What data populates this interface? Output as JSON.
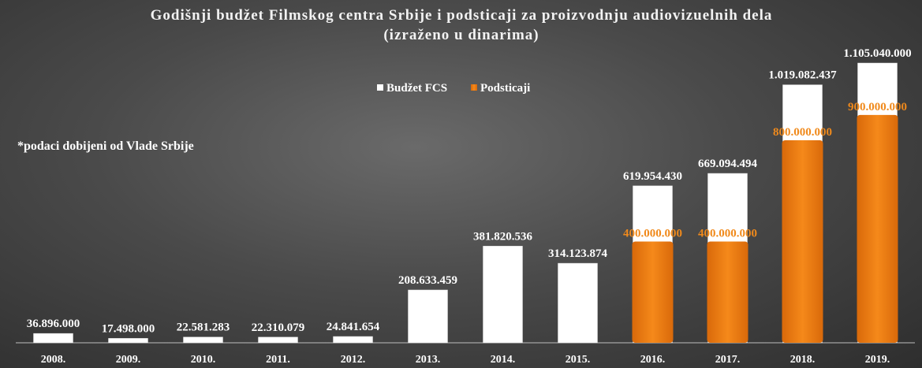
{
  "chart_data": {
    "type": "bar",
    "title": "Godišnji budžet Filmskog centra Srbije i podsticaji za proizvodnju audiovizuelnih dela",
    "subtitle": "(izraženo u dinarima)",
    "note": "*podaci dobijeni od Vlade Srbije",
    "legend_position": "top-center",
    "grid": false,
    "ylim": [
      0,
      1105040000
    ],
    "categories": [
      "2008.",
      "2009.",
      "2010.",
      "2011.",
      "2012.",
      "2013.",
      "2014.",
      "2015.",
      "2016.",
      "2017.",
      "2018.",
      "2019."
    ],
    "series": [
      {
        "name": "Budžet FCS",
        "color": "#ffffff",
        "values": [
          36896000,
          17498000,
          22581283,
          22310079,
          24841654,
          208633459,
          381820536,
          314123874,
          619954430,
          669094494,
          1019082437,
          1105040000
        ],
        "labels": [
          "36.896.000",
          "17.498.000",
          "22.581.283",
          "22.310.079",
          "24.841.654",
          "208.633.459",
          "381.820.536",
          "314.123.874",
          "619.954.430",
          "669.094.494",
          "1.019.082.437",
          "1.105.040.000"
        ]
      },
      {
        "name": "Podsticaji",
        "color": "#f08a1c",
        "values": [
          null,
          null,
          null,
          null,
          null,
          null,
          null,
          null,
          400000000,
          400000000,
          800000000,
          900000000
        ],
        "labels": [
          "",
          "",
          "",
          "",
          "",
          "",
          "",
          "",
          "400.000.000",
          "400.000.000",
          "800.000.000",
          "900.000.000"
        ]
      }
    ]
  }
}
